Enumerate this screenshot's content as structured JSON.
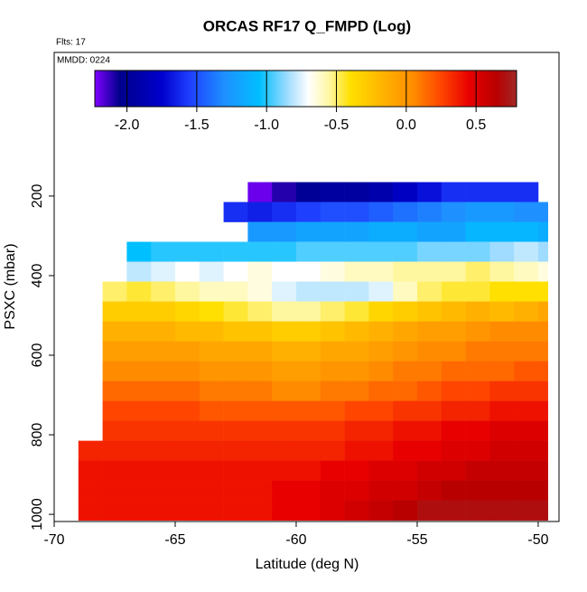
{
  "chart_data": {
    "type": "heatmap",
    "title": "ORCAS RF17 Q_FMPD (Log)",
    "flights_label": "Flts: 17",
    "date_label": "MMDD: 0224",
    "x_label": "Latitude (deg N)",
    "y_label": "PSXC (mbar)",
    "xlim": [
      -70,
      -49.14
    ],
    "xticks": [
      -70,
      -65,
      -60,
      -55,
      -50
    ],
    "ylim": [
      1018,
      -161
    ],
    "yticks": [
      200,
      400,
      600,
      800,
      1000
    ],
    "x_edges": [
      -69,
      -68,
      -67,
      -66,
      -65,
      -64,
      -63,
      -62,
      -61,
      -60,
      -59,
      -58,
      -57,
      -56,
      -55,
      -54,
      -53,
      -52,
      -51,
      -50,
      -49.6
    ],
    "y_edges": [
      165,
      215,
      265,
      315,
      365,
      415,
      465,
      515,
      565,
      615,
      665,
      715,
      765,
      815,
      865,
      915,
      965,
      1015
    ],
    "z": [
      [
        null,
        null,
        null,
        null,
        null,
        null,
        null,
        -2.2,
        -2.1,
        -2.0,
        -1.95,
        -1.95,
        -1.9,
        -1.8,
        -1.7,
        -1.6,
        -1.6,
        -1.6,
        -1.6,
        null
      ],
      [
        null,
        null,
        null,
        null,
        null,
        null,
        -1.6,
        -1.65,
        -1.6,
        -1.55,
        -1.5,
        -1.5,
        -1.45,
        -1.4,
        -1.35,
        -1.3,
        -1.25,
        -1.25,
        -1.3,
        -1.3
      ],
      [
        null,
        null,
        null,
        null,
        null,
        null,
        null,
        -1.25,
        -1.25,
        -1.2,
        -1.2,
        -1.2,
        -1.15,
        -1.15,
        -1.2,
        -1.2,
        -1.1,
        -1.1,
        -1.1,
        -1.15
      ],
      [
        null,
        null,
        -1.05,
        -1.0,
        -1.0,
        -1.0,
        -1.0,
        -1.0,
        -1.0,
        -0.95,
        -0.95,
        -0.95,
        -0.95,
        -0.95,
        -0.9,
        -0.9,
        -0.9,
        -0.85,
        -0.8,
        -0.85
      ],
      [
        null,
        null,
        -0.8,
        -0.75,
        -0.7,
        -0.75,
        -0.7,
        -0.65,
        -0.7,
        -0.7,
        -0.65,
        -0.6,
        -0.6,
        -0.55,
        -0.55,
        -0.55,
        -0.5,
        -0.55,
        -0.6,
        -0.65
      ],
      [
        null,
        -0.5,
        -0.45,
        -0.5,
        -0.55,
        -0.6,
        -0.6,
        -0.65,
        -0.75,
        -0.8,
        -0.8,
        -0.8,
        -0.75,
        -0.6,
        -0.5,
        -0.45,
        -0.45,
        -0.4,
        -0.4,
        -0.4
      ],
      [
        null,
        -0.3,
        -0.3,
        -0.3,
        -0.35,
        -0.4,
        -0.45,
        -0.5,
        -0.55,
        -0.55,
        -0.5,
        -0.45,
        -0.35,
        -0.3,
        -0.25,
        -0.2,
        -0.15,
        -0.2,
        -0.15,
        -0.1
      ],
      [
        null,
        -0.15,
        -0.15,
        -0.15,
        -0.2,
        -0.2,
        -0.25,
        -0.25,
        -0.3,
        -0.3,
        -0.25,
        -0.2,
        -0.15,
        -0.1,
        -0.05,
        -0.05,
        0.0,
        0.05,
        0.05,
        0.05
      ],
      [
        null,
        -0.05,
        -0.05,
        -0.05,
        -0.05,
        -0.1,
        -0.1,
        -0.1,
        -0.15,
        -0.15,
        -0.1,
        -0.1,
        -0.05,
        0.0,
        0.05,
        0.05,
        0.1,
        0.1,
        0.1,
        0.1
      ],
      [
        null,
        0.05,
        0.05,
        0.05,
        0.05,
        0.0,
        0.0,
        0.0,
        -0.05,
        -0.05,
        0.0,
        0.0,
        0.05,
        0.1,
        0.1,
        0.15,
        0.15,
        0.15,
        0.2,
        0.2
      ],
      [
        null,
        0.15,
        0.15,
        0.15,
        0.15,
        0.1,
        0.1,
        0.1,
        0.05,
        0.05,
        0.1,
        0.1,
        0.15,
        0.15,
        0.2,
        0.25,
        0.25,
        0.3,
        0.3,
        0.3
      ],
      [
        null,
        0.25,
        0.25,
        0.25,
        0.25,
        0.2,
        0.2,
        0.2,
        0.2,
        0.2,
        0.2,
        0.25,
        0.25,
        0.3,
        0.3,
        0.35,
        0.35,
        0.4,
        0.4,
        0.4
      ],
      [
        null,
        0.3,
        0.3,
        0.3,
        0.3,
        0.3,
        0.3,
        0.3,
        0.3,
        0.3,
        0.3,
        0.35,
        0.35,
        0.4,
        0.4,
        0.45,
        0.45,
        0.5,
        0.5,
        0.5
      ],
      [
        0.35,
        0.35,
        0.35,
        0.35,
        0.35,
        0.35,
        0.35,
        0.35,
        0.35,
        0.35,
        0.35,
        0.4,
        0.4,
        0.45,
        0.45,
        0.5,
        0.5,
        0.55,
        0.55,
        0.55
      ],
      [
        0.4,
        0.4,
        0.4,
        0.4,
        0.4,
        0.4,
        0.4,
        0.4,
        0.4,
        0.4,
        0.45,
        0.45,
        0.5,
        0.5,
        0.55,
        0.55,
        0.6,
        0.6,
        0.6,
        0.6
      ],
      [
        0.4,
        0.4,
        0.4,
        0.4,
        0.4,
        0.4,
        0.4,
        0.4,
        0.45,
        0.45,
        0.5,
        0.5,
        0.55,
        0.55,
        0.6,
        0.65,
        0.65,
        0.65,
        0.65,
        0.65
      ],
      [
        0.4,
        0.4,
        0.4,
        0.4,
        0.4,
        0.4,
        0.4,
        0.4,
        0.45,
        0.45,
        0.5,
        0.55,
        0.6,
        0.65,
        0.7,
        0.7,
        0.7,
        0.7,
        0.7,
        0.7
      ]
    ],
    "colorbar_lim": [
      -2.23,
      0.79
    ],
    "colorbar_ticks": [
      {
        "value": -2,
        "label": "-2.0"
      },
      {
        "value": -1.5,
        "label": "-1.5"
      },
      {
        "value": -1,
        "label": "-1.0"
      },
      {
        "value": -0.5,
        "label": "-0.5"
      },
      {
        "value": 0,
        "label": "0.0"
      },
      0.5
    ],
    "colormap": [
      {
        "value": -2.23,
        "color": "#7f00ff"
      },
      {
        "value": -2.05,
        "color": "#00008b"
      },
      {
        "value": -1.75,
        "color": "#0000cd"
      },
      {
        "value": -1.55,
        "color": "#1f3fff"
      },
      {
        "value": -1.3,
        "color": "#1e90ff"
      },
      {
        "value": -1.05,
        "color": "#00bfff"
      },
      {
        "value": -0.85,
        "color": "#9fdcff"
      },
      {
        "value": -0.7,
        "color": "#ffffff"
      },
      {
        "value": -0.55,
        "color": "#fff7a0"
      },
      {
        "value": -0.4,
        "color": "#ffe000"
      },
      {
        "value": -0.15,
        "color": "#ffb000"
      },
      {
        "value": 0.05,
        "color": "#ff8c00"
      },
      {
        "value": 0.25,
        "color": "#ff4500"
      },
      {
        "value": 0.45,
        "color": "#e80000"
      },
      {
        "value": 0.65,
        "color": "#b80000"
      },
      {
        "value": 0.79,
        "color": "#a02828"
      }
    ]
  }
}
